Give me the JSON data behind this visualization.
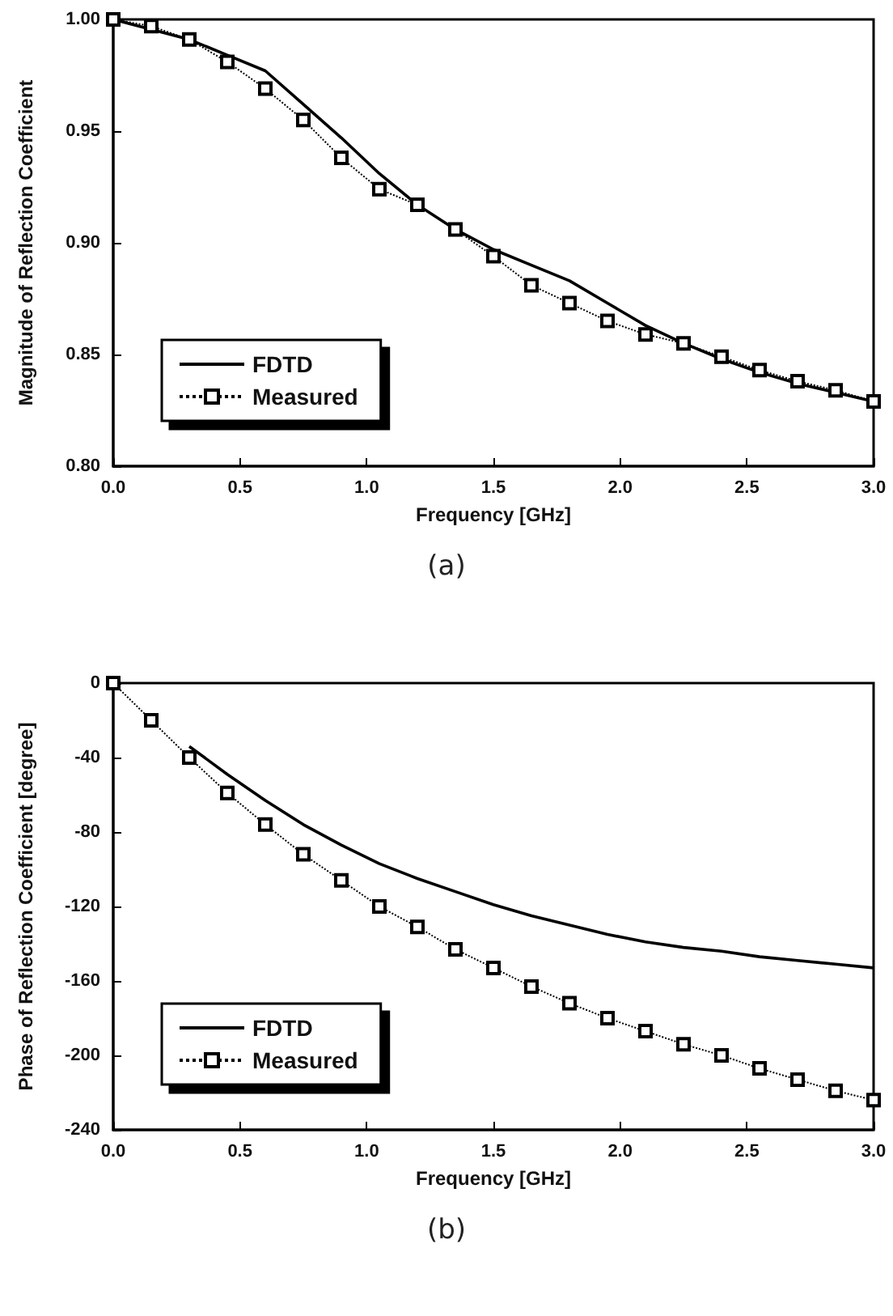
{
  "chart_data": [
    {
      "type": "line",
      "xlabel": "Frequency [GHz]",
      "ylabel": "Magnitude of Reflection Coefficient",
      "annotations": [
        "(a)"
      ],
      "xlim": [
        0,
        3
      ],
      "xticks": [
        {
          "value": 0,
          "label": "0.0"
        },
        0.5,
        {
          "value": 1,
          "label": "1.0"
        },
        1.5,
        {
          "value": 2,
          "label": "2.0"
        },
        2.5,
        {
          "value": 3,
          "label": "3.0"
        }
      ],
      "ylim": [
        0.8,
        1.0
      ],
      "yticks": [
        {
          "value": 0.8,
          "label": "0.80"
        },
        0.85,
        {
          "value": 0.9,
          "label": "0.90"
        },
        0.95,
        {
          "value": 1.0,
          "label": "1.00"
        }
      ],
      "grid": false,
      "legend": "bottom left",
      "series": [
        {
          "name": "FDTD",
          "color": "#000000",
          "marker": "none",
          "line_style": "solid",
          "x": [
            0,
            0.3,
            0.45,
            0.6,
            0.75,
            0.9,
            1.05,
            1.2,
            1.35,
            1.5,
            1.65,
            1.8,
            1.95,
            2.1,
            2.25,
            2.4,
            2.55,
            2.7,
            2.85,
            3.0
          ],
          "values": [
            1.0,
            0.991,
            0.984,
            0.977,
            0.962,
            0.947,
            0.931,
            0.917,
            0.906,
            0.897,
            0.89,
            0.883,
            0.873,
            0.863,
            0.855,
            0.848,
            0.842,
            0.837,
            0.833,
            0.829
          ]
        },
        {
          "name": "Measured",
          "color": "#000000",
          "marker": "square",
          "line_style": "dotted",
          "x": [
            0,
            0.15,
            0.3,
            0.45,
            0.6,
            0.75,
            0.9,
            1.05,
            1.2,
            1.35,
            1.5,
            1.65,
            1.8,
            1.95,
            2.1,
            2.25,
            2.4,
            2.55,
            2.7,
            2.85,
            3.0
          ],
          "values": [
            1.0,
            0.997,
            0.991,
            0.981,
            0.969,
            0.955,
            0.938,
            0.924,
            0.917,
            0.906,
            0.894,
            0.881,
            0.873,
            0.865,
            0.859,
            0.855,
            0.849,
            0.843,
            0.838,
            0.834,
            0.829
          ]
        }
      ]
    },
    {
      "type": "line",
      "xlabel": "Frequency [GHz]",
      "ylabel": "Phase of Reflection Coefficient [degree]",
      "annotations": [
        "(b)"
      ],
      "xlim": [
        0,
        3
      ],
      "xticks": [
        {
          "value": 0,
          "label": "0.0"
        },
        0.5,
        {
          "value": 1,
          "label": "1.0"
        },
        1.5,
        {
          "value": 2,
          "label": "2.0"
        },
        2.5,
        {
          "value": 3,
          "label": "3.0"
        }
      ],
      "ylim": [
        -240,
        0
      ],
      "yticks": [
        -240,
        -200,
        -160,
        -120,
        -80,
        -40,
        0
      ],
      "grid": false,
      "legend": "bottom left",
      "series": [
        {
          "name": "FDTD",
          "color": "#000000",
          "marker": "none",
          "line_style": "solid",
          "x": [
            0.3,
            0.45,
            0.6,
            0.75,
            0.9,
            1.05,
            1.2,
            1.35,
            1.5,
            1.65,
            1.8,
            1.95,
            2.1,
            2.25,
            2.4,
            2.55,
            2.7,
            2.85,
            3.0
          ],
          "values": [
            -34,
            -49,
            -63,
            -76,
            -87,
            -97,
            -105,
            -112,
            -119,
            -125,
            -130,
            -135,
            -139,
            -142,
            -144,
            -147,
            -149,
            -151,
            -153
          ]
        },
        {
          "name": "Measured",
          "color": "#000000",
          "marker": "square",
          "line_style": "dotted",
          "x": [
            0,
            0.15,
            0.3,
            0.45,
            0.6,
            0.75,
            0.9,
            1.05,
            1.2,
            1.35,
            1.5,
            1.65,
            1.8,
            1.95,
            2.1,
            2.25,
            2.4,
            2.55,
            2.7,
            2.85,
            3.0
          ],
          "values": [
            0,
            -20,
            -40,
            -59,
            -76,
            -92,
            -106,
            -120,
            -131,
            -143,
            -153,
            -163,
            -172,
            -180,
            -187,
            -194,
            -200,
            -207,
            -213,
            -219,
            -224
          ]
        }
      ]
    }
  ]
}
